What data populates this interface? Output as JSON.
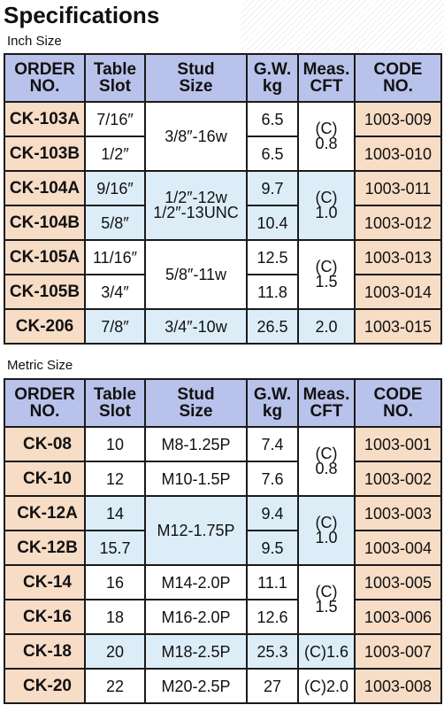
{
  "title": "Specifications",
  "inch": {
    "label": "Inch Size",
    "headers": {
      "order_1": "ORDER",
      "order_2": "NO.",
      "slot_1": "Table",
      "slot_2": "Slot",
      "stud_1": "Stud",
      "stud_2": "Size",
      "gw_1": "G.W.",
      "gw_2": "kg",
      "meas_1": "Meas.",
      "meas_2": "CFT",
      "code_1": "CODE",
      "code_2": "NO."
    },
    "rows": [
      {
        "order": "CK-103A",
        "slot": "7/16″",
        "stud": "3/8″-16w",
        "gw": "6.5",
        "meas": "(C)\n0.8",
        "code": "1003-009"
      },
      {
        "order": "CK-103B",
        "slot": "1/2″",
        "gw": "6.5",
        "code": "1003-010"
      },
      {
        "order": "CK-104A",
        "slot": "9/16″",
        "stud": "1/2″-12w\n1/2″-13UNC",
        "gw": "9.7",
        "meas": "(C)\n1.0",
        "code": "1003-011"
      },
      {
        "order": "CK-104B",
        "slot": "5/8″",
        "gw": "10.4",
        "code": "1003-012"
      },
      {
        "order": "CK-105A",
        "slot": "11/16″",
        "stud": "5/8″-11w",
        "gw": "12.5",
        "meas": "(C)\n1.5",
        "code": "1003-013"
      },
      {
        "order": "CK-105B",
        "slot": "3/4″",
        "gw": "11.8",
        "code": "1003-014"
      },
      {
        "order": "CK-206",
        "slot": "7/8″",
        "stud": "3/4″-10w",
        "gw": "26.5",
        "meas": "2.0",
        "code": "1003-015"
      }
    ]
  },
  "metric": {
    "label": "Metric Size",
    "headers": {
      "order_1": "ORDER",
      "order_2": "NO.",
      "slot_1": "Table",
      "slot_2": "Slot",
      "stud_1": "Stud",
      "stud_2": "Size",
      "gw_1": "G.W.",
      "gw_2": "kg",
      "meas_1": "Meas.",
      "meas_2": "CFT",
      "code_1": "CODE",
      "code_2": "NO."
    },
    "rows": [
      {
        "order": "CK-08",
        "slot": "10",
        "stud": "M8-1.25P",
        "gw": "7.4",
        "meas": "(C)\n0.8",
        "code": "1003-001"
      },
      {
        "order": "CK-10",
        "slot": "12",
        "stud": "M10-1.5P",
        "gw": "7.6",
        "code": "1003-002"
      },
      {
        "order": "CK-12A",
        "slot": "14",
        "stud": "M12-1.75P",
        "gw": "9.4",
        "meas": "(C)\n1.0",
        "code": "1003-003"
      },
      {
        "order": "CK-12B",
        "slot": "15.7",
        "gw": "9.5",
        "code": "1003-004"
      },
      {
        "order": "CK-14",
        "slot": "16",
        "stud": "M14-2.0P",
        "gw": "11.1",
        "meas": "(C)\n1.5",
        "code": "1003-005"
      },
      {
        "order": "CK-16",
        "slot": "18",
        "stud": "M16-2.0P",
        "gw": "12.6",
        "code": "1003-006"
      },
      {
        "order": "CK-18",
        "slot": "20",
        "stud": "M18-2.5P",
        "gw": "25.3",
        "meas": "(C)1.6",
        "code": "1003-007"
      },
      {
        "order": "CK-20",
        "slot": "22",
        "stud": "M20-2.5P",
        "gw": "27",
        "meas": "(C)2.0",
        "code": "1003-008"
      }
    ]
  }
}
